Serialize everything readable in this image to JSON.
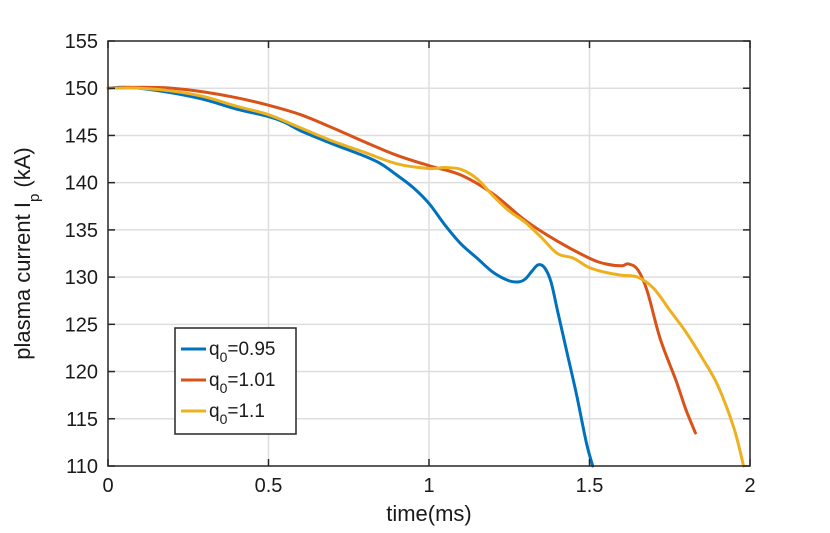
{
  "chart_data": {
    "type": "line",
    "xlabel": "time(ms)",
    "ylabel_parts": [
      "plasma current I",
      "p",
      " (kA)"
    ],
    "xlim": [
      0,
      2
    ],
    "ylim": [
      110,
      155
    ],
    "xticks": [
      0,
      0.5,
      1,
      1.5,
      2
    ],
    "xtick_labels": [
      "0",
      "0.5",
      "1",
      "1.5",
      "2"
    ],
    "yticks": [
      110,
      115,
      120,
      125,
      130,
      135,
      140,
      145,
      150,
      155
    ],
    "ytick_labels": [
      "110",
      "115",
      "120",
      "125",
      "130",
      "135",
      "140",
      "145",
      "150",
      "155"
    ],
    "grid": true,
    "legend_position": "lower-left",
    "series": [
      {
        "name_parts": [
          "q",
          "0",
          "=0.95"
        ],
        "color": "#0072BD",
        "points": [
          [
            0,
            150
          ],
          [
            0.05,
            150.1
          ],
          [
            0.1,
            150.0
          ],
          [
            0.2,
            149.5
          ],
          [
            0.3,
            148.8
          ],
          [
            0.4,
            147.8
          ],
          [
            0.5,
            147.0
          ],
          [
            0.55,
            146.4
          ],
          [
            0.6,
            145.5
          ],
          [
            0.7,
            144.1
          ],
          [
            0.8,
            142.8
          ],
          [
            0.85,
            142.0
          ],
          [
            0.9,
            140.8
          ],
          [
            0.95,
            139.5
          ],
          [
            1.0,
            137.8
          ],
          [
            1.05,
            135.5
          ],
          [
            1.1,
            133.5
          ],
          [
            1.15,
            132.0
          ],
          [
            1.2,
            130.5
          ],
          [
            1.25,
            129.6
          ],
          [
            1.28,
            129.5
          ],
          [
            1.3,
            129.8
          ],
          [
            1.32,
            130.6
          ],
          [
            1.34,
            131.3
          ],
          [
            1.36,
            131.0
          ],
          [
            1.38,
            129.5
          ],
          [
            1.4,
            126.5
          ],
          [
            1.43,
            122.0
          ],
          [
            1.46,
            117.5
          ],
          [
            1.49,
            112.5
          ],
          [
            1.51,
            110.0
          ]
        ]
      },
      {
        "name_parts": [
          "q",
          "0",
          "=1.01"
        ],
        "color": "#D95319",
        "points": [
          [
            0,
            150
          ],
          [
            0.1,
            150.1
          ],
          [
            0.2,
            150.0
          ],
          [
            0.3,
            149.6
          ],
          [
            0.4,
            149.0
          ],
          [
            0.5,
            148.2
          ],
          [
            0.6,
            147.2
          ],
          [
            0.7,
            145.8
          ],
          [
            0.8,
            144.3
          ],
          [
            0.9,
            142.9
          ],
          [
            1.0,
            141.8
          ],
          [
            1.1,
            140.8
          ],
          [
            1.2,
            138.8
          ],
          [
            1.3,
            136.0
          ],
          [
            1.4,
            133.8
          ],
          [
            1.5,
            132.0
          ],
          [
            1.55,
            131.4
          ],
          [
            1.6,
            131.2
          ],
          [
            1.62,
            131.4
          ],
          [
            1.65,
            130.8
          ],
          [
            1.68,
            128.5
          ],
          [
            1.72,
            123.5
          ],
          [
            1.77,
            119.0
          ],
          [
            1.8,
            116.0
          ],
          [
            1.83,
            113.5
          ]
        ]
      },
      {
        "name_parts": [
          "q",
          "0",
          "=1.1"
        ],
        "color": "#EDB120",
        "points": [
          [
            0,
            150
          ],
          [
            0.1,
            150.0
          ],
          [
            0.2,
            149.7
          ],
          [
            0.3,
            149.1
          ],
          [
            0.4,
            148.1
          ],
          [
            0.5,
            147.2
          ],
          [
            0.6,
            145.8
          ],
          [
            0.7,
            144.4
          ],
          [
            0.8,
            143.2
          ],
          [
            0.9,
            142.0
          ],
          [
            1.0,
            141.5
          ],
          [
            1.05,
            141.6
          ],
          [
            1.1,
            141.4
          ],
          [
            1.15,
            140.4
          ],
          [
            1.2,
            138.6
          ],
          [
            1.25,
            137.0
          ],
          [
            1.3,
            135.8
          ],
          [
            1.35,
            134.2
          ],
          [
            1.4,
            132.5
          ],
          [
            1.45,
            132.0
          ],
          [
            1.5,
            131.0
          ],
          [
            1.55,
            130.5
          ],
          [
            1.6,
            130.2
          ],
          [
            1.65,
            130.0
          ],
          [
            1.7,
            128.8
          ],
          [
            1.75,
            126.5
          ],
          [
            1.8,
            124.2
          ],
          [
            1.85,
            121.5
          ],
          [
            1.9,
            118.5
          ],
          [
            1.95,
            114.0
          ],
          [
            1.98,
            110.0
          ]
        ]
      }
    ]
  }
}
